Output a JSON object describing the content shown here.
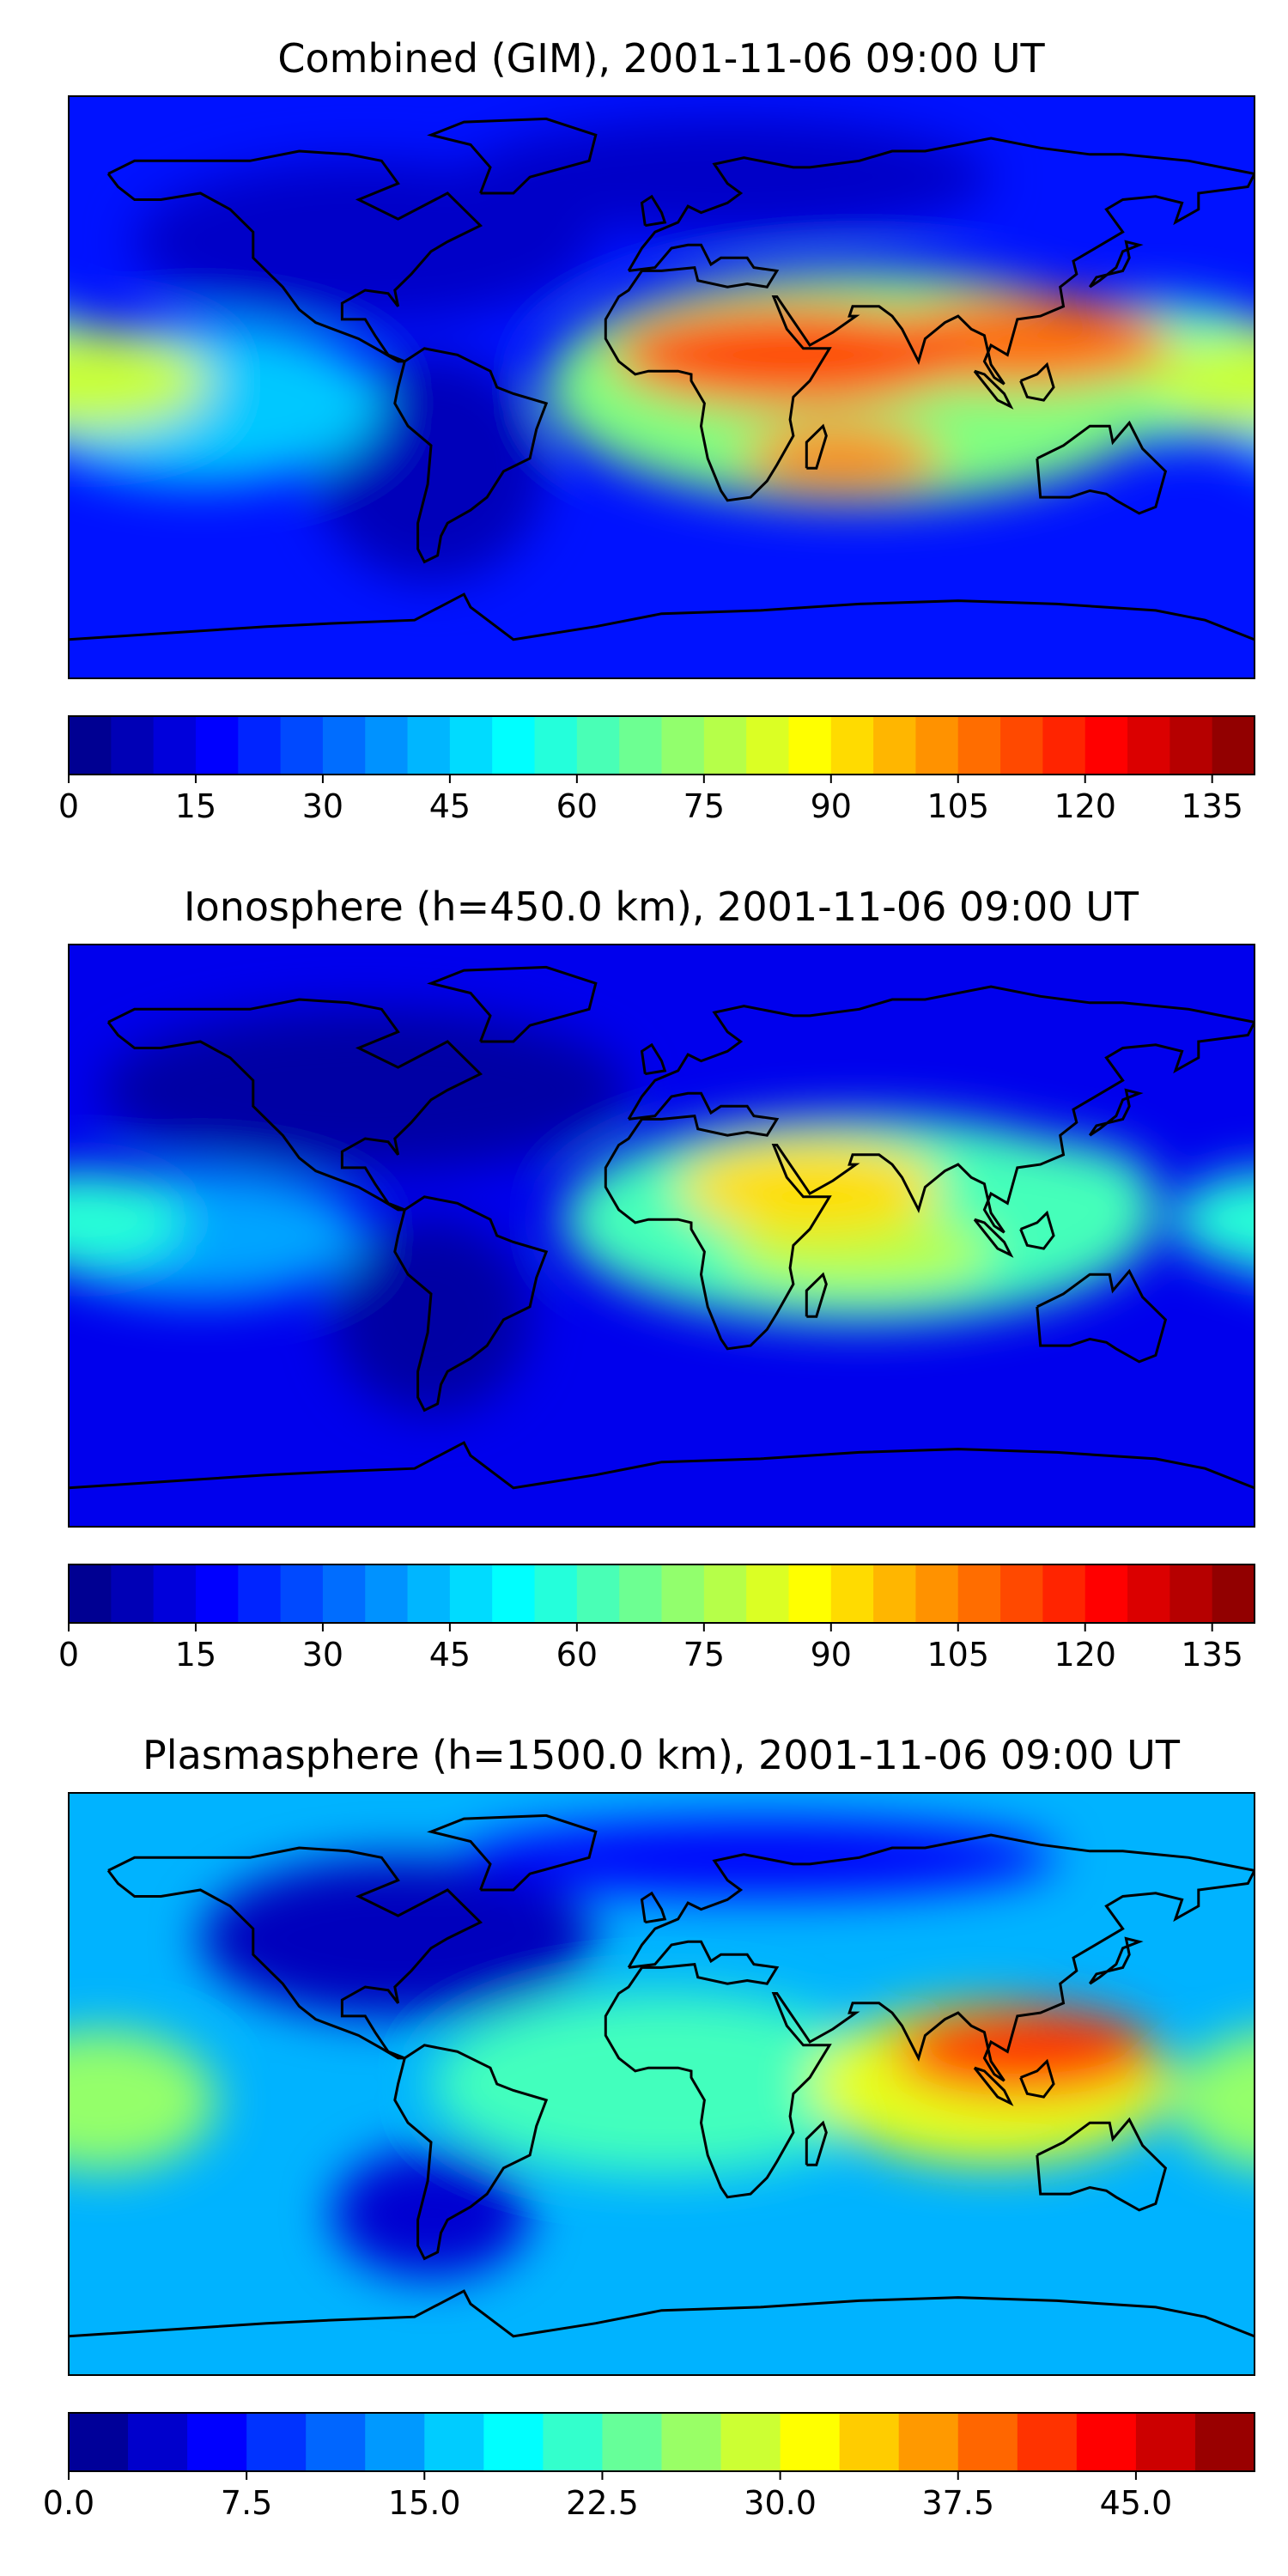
{
  "chart_data": [
    {
      "type": "heatmap",
      "title": "Combined (GIM), 2001-11-06 09:00 UT",
      "colorbar": {
        "levels": [
          0,
          5,
          10,
          15,
          20,
          25,
          30,
          35,
          40,
          45,
          50,
          55,
          60,
          65,
          70,
          75,
          80,
          85,
          90,
          95,
          100,
          105,
          110,
          115,
          120,
          125,
          130,
          135,
          140
        ],
        "tick_labels": [
          "0",
          "15",
          "30",
          "45",
          "60",
          "75",
          "90",
          "105",
          "120",
          "135"
        ],
        "tick_values": [
          0,
          15,
          30,
          45,
          60,
          75,
          90,
          105,
          120,
          135
        ],
        "vmin": 0,
        "vmax": 140
      },
      "features": [
        {
          "lon": 40,
          "lat": 10,
          "value": 112,
          "w": 55,
          "h": 16
        },
        {
          "lon": 110,
          "lat": 14,
          "value": 108,
          "w": 45,
          "h": 14
        },
        {
          "lon": 55,
          "lat": -22,
          "value": 105,
          "w": 30,
          "h": 10
        },
        {
          "lon": 60,
          "lat": 0,
          "value": 70,
          "w": 95,
          "h": 36
        },
        {
          "lon": -175,
          "lat": 2,
          "value": 80,
          "w": 38,
          "h": 16
        },
        {
          "lon": 150,
          "lat": 5,
          "value": 60,
          "w": 45,
          "h": 22
        },
        {
          "lon": -140,
          "lat": -5,
          "value": 45,
          "w": 55,
          "h": 25
        },
        {
          "lon": -90,
          "lat": 45,
          "value": 10,
          "w": 70,
          "h": 25
        },
        {
          "lon": -70,
          "lat": -25,
          "value": 8,
          "w": 35,
          "h": 35
        },
        {
          "lon": 20,
          "lat": 65,
          "value": 10,
          "w": 80,
          "h": 18
        }
      ],
      "background_value": 20
    },
    {
      "type": "heatmap",
      "title": "Ionosphere  (h=450.0 km), 2001-11-06 09:00 UT",
      "colorbar": {
        "levels": [
          0,
          5,
          10,
          15,
          20,
          25,
          30,
          35,
          40,
          45,
          50,
          55,
          60,
          65,
          70,
          75,
          80,
          85,
          90,
          95,
          100,
          105,
          110,
          115,
          120,
          125,
          130,
          135,
          140
        ],
        "tick_labels": [
          "0",
          "15",
          "30",
          "45",
          "60",
          "75",
          "90",
          "105",
          "120",
          "135"
        ],
        "tick_values": [
          0,
          15,
          30,
          45,
          60,
          75,
          90,
          105,
          120,
          135
        ],
        "vmin": 0,
        "vmax": 140
      },
      "features": [
        {
          "lon": 45,
          "lat": 15,
          "value": 92,
          "w": 40,
          "h": 15
        },
        {
          "lon": 60,
          "lat": -5,
          "value": 78,
          "w": 40,
          "h": 12
        },
        {
          "lon": 60,
          "lat": 5,
          "value": 62,
          "w": 90,
          "h": 32
        },
        {
          "lon": 110,
          "lat": 15,
          "value": 60,
          "w": 40,
          "h": 15
        },
        {
          "lon": -175,
          "lat": 5,
          "value": 58,
          "w": 30,
          "h": 15
        },
        {
          "lon": -140,
          "lat": 0,
          "value": 40,
          "w": 50,
          "h": 20
        },
        {
          "lon": -90,
          "lat": 45,
          "value": 5,
          "w": 80,
          "h": 25
        },
        {
          "lon": -70,
          "lat": -25,
          "value": 5,
          "w": 30,
          "h": 30
        }
      ],
      "background_value": 15
    },
    {
      "type": "heatmap",
      "title": "Plasmasphere (h=1500.0 km), 2001-11-06 09:00 UT",
      "colorbar": {
        "levels": [
          0,
          2.5,
          5,
          7.5,
          10,
          12.5,
          15,
          17.5,
          20,
          22.5,
          25,
          27.5,
          30,
          32.5,
          35,
          37.5,
          40,
          42.5,
          45,
          47.5,
          50
        ],
        "tick_labels": [
          "0.0",
          "7.5",
          "15.0",
          "22.5",
          "30.0",
          "37.5",
          "45.0"
        ],
        "tick_values": [
          0,
          7.5,
          15,
          22.5,
          30,
          37.5,
          45
        ],
        "vmin": 0,
        "vmax": 50
      },
      "features": [
        {
          "lon": 110,
          "lat": 10,
          "value": 41,
          "w": 40,
          "h": 14
        },
        {
          "lon": 100,
          "lat": 0,
          "value": 30,
          "w": 55,
          "h": 25
        },
        {
          "lon": 0,
          "lat": 0,
          "value": 22,
          "w": 70,
          "h": 28
        },
        {
          "lon": -170,
          "lat": -5,
          "value": 26,
          "w": 35,
          "h": 22
        },
        {
          "lon": -80,
          "lat": 45,
          "value": 3,
          "w": 60,
          "h": 25
        },
        {
          "lon": -70,
          "lat": -40,
          "value": 4,
          "w": 30,
          "h": 20
        },
        {
          "lon": 30,
          "lat": 70,
          "value": 6,
          "w": 90,
          "h": 12
        }
      ],
      "background_value": 15
    }
  ]
}
